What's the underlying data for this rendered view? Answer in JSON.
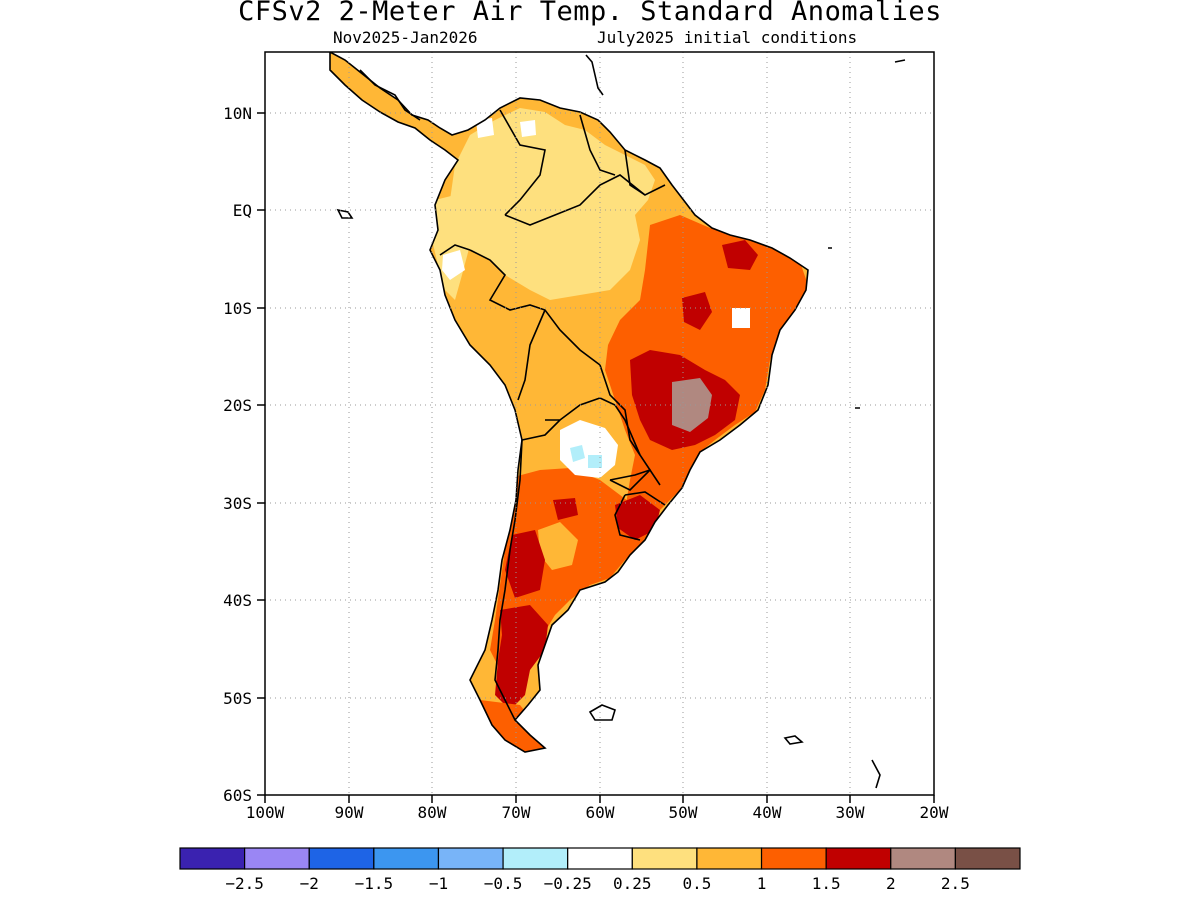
{
  "title": "CFSv2 2-Meter Air Temp. Standard Anomalies",
  "subtitle_period": "Nov2025-Jan2026",
  "subtitle_init": "July2025 initial conditions",
  "map": {
    "lon_range": [
      -100,
      -20
    ],
    "lat_range": [
      -60,
      15
    ],
    "lat_labels": [
      "10N",
      "EQ",
      "10S",
      "20S",
      "30S",
      "40S",
      "50S",
      "60S"
    ],
    "lat_values": [
      10,
      0,
      -10,
      -20,
      -30,
      -40,
      -50,
      -60
    ],
    "lon_labels": [
      "100W",
      "90W",
      "80W",
      "70W",
      "60W",
      "50W",
      "40W",
      "30W",
      "20W"
    ],
    "lon_values": [
      -100,
      -90,
      -80,
      -70,
      -60,
      -50,
      -40,
      -30,
      -20
    ],
    "gridlines": "dotted"
  },
  "colorbar": {
    "colors": [
      "#3a22b0",
      "#9a86f4",
      "#1e64e6",
      "#3c96f0",
      "#78b4f8",
      "#b2eefa",
      "#ffffff",
      "#fee07e",
      "#ffb736",
      "#fd5f00",
      "#c00000",
      "#b08880",
      "#795046"
    ],
    "tick_labels": [
      "-2.5",
      "-2",
      "-1.5",
      "-1",
      "-0.5",
      "-0.25",
      "0.25",
      "0.5",
      "1",
      "1.5",
      "2",
      "2.5"
    ]
  },
  "anomaly_regions": [
    {
      "name": "north-andes-venezuela",
      "level": "0.5",
      "color": "#fee07e"
    },
    {
      "name": "amazon-basin",
      "level": "0.5",
      "color": "#fee07e"
    },
    {
      "name": "west-amazon-peru",
      "level": "1",
      "color": "#ffb736"
    },
    {
      "name": "bolivia-andes",
      "level": "1",
      "color": "#ffb736"
    },
    {
      "name": "brazil-east",
      "level": "1.5",
      "color": "#fd5f00"
    },
    {
      "name": "brazil-central-high",
      "level": "2",
      "color": "#c00000"
    },
    {
      "name": "brazil-central-peak",
      "level": "2.5",
      "color": "#b08880"
    },
    {
      "name": "argentina",
      "level": "1.5",
      "color": "#fd5f00"
    },
    {
      "name": "patagonia",
      "level": "2",
      "color": "#c00000"
    },
    {
      "name": "chaco-paraguay",
      "level": "0.25",
      "color": "#ffffff"
    },
    {
      "name": "chaco-cold-spots",
      "level": "-0.25",
      "color": "#b2eefa"
    }
  ]
}
